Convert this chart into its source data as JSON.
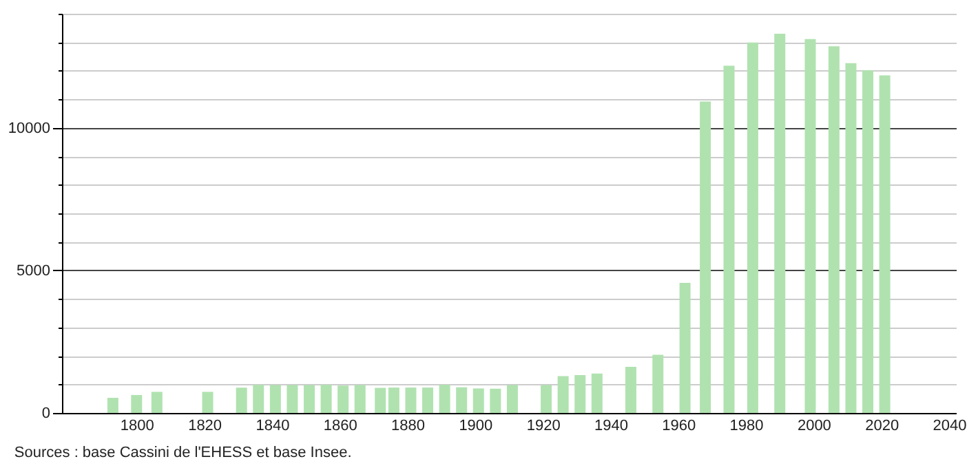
{
  "chart_data": {
    "type": "bar",
    "x": [
      1793,
      1800,
      1806,
      1821,
      1831,
      1836,
      1841,
      1846,
      1851,
      1856,
      1861,
      1866,
      1872,
      1876,
      1881,
      1886,
      1891,
      1896,
      1901,
      1906,
      1911,
      1921,
      1926,
      1931,
      1936,
      1946,
      1954,
      1962,
      1968,
      1975,
      1982,
      1990,
      1999,
      2006,
      2011,
      2016,
      2021
    ],
    "values": [
      530,
      630,
      740,
      740,
      890,
      990,
      980,
      980,
      980,
      990,
      960,
      980,
      880,
      890,
      890,
      890,
      990,
      900,
      860,
      850,
      980,
      980,
      1290,
      1330,
      1380,
      1620,
      2040,
      4560,
      10920,
      12180,
      12990,
      13300,
      13110,
      12860,
      12270,
      12020,
      11840
    ],
    "color": "#b0e2b0",
    "xlim": [
      1780,
      2040
    ],
    "xticks": [
      1800,
      1820,
      1840,
      1860,
      1880,
      1900,
      1920,
      1940,
      1960,
      1980,
      2000,
      2020,
      2040
    ],
    "ylim": [
      0,
      14000
    ],
    "yticks": [
      0,
      {
        "value": 1000,
        "label": null
      },
      {
        "value": 2000,
        "label": null
      },
      {
        "value": 3000,
        "label": null
      },
      {
        "value": 4000,
        "label": null
      },
      5000,
      {
        "value": 6000,
        "label": null
      },
      {
        "value": 7000,
        "label": null
      },
      {
        "value": 8000,
        "label": null
      },
      {
        "value": 9000,
        "label": null
      },
      10000,
      {
        "value": 11000,
        "label": null
      },
      {
        "value": 12000,
        "label": null
      },
      {
        "value": 13000,
        "label": null
      },
      {
        "value": 14000,
        "label": null
      }
    ],
    "grid": "y",
    "annotations": [
      "Sources : base Cassini de l'EHESS et base Insee."
    ]
  }
}
